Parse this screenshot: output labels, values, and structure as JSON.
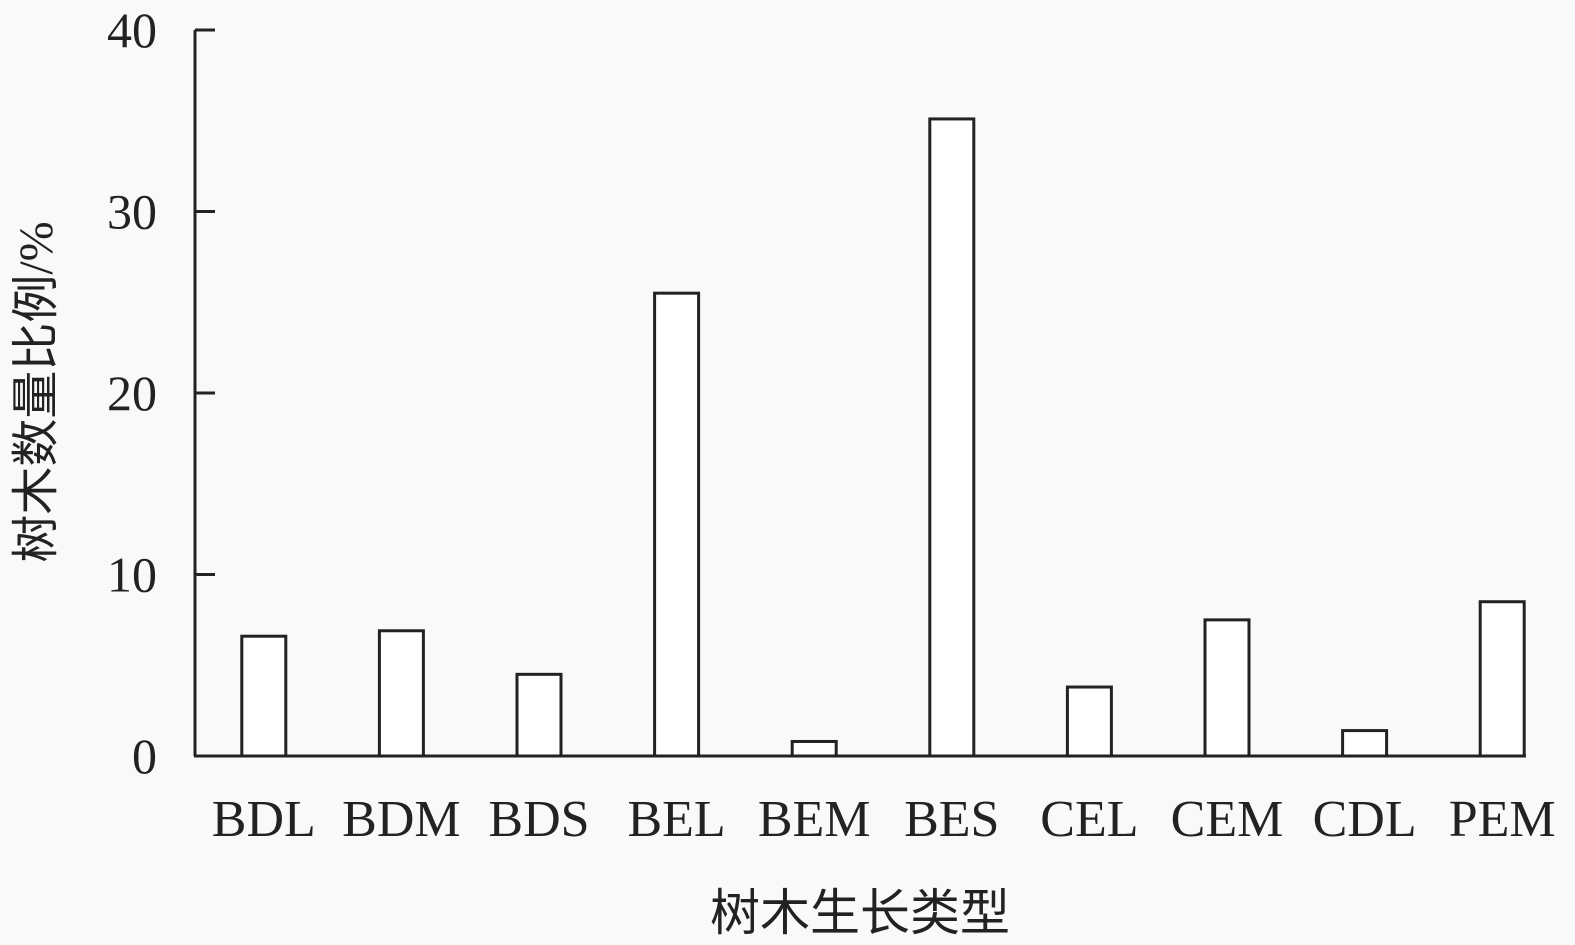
{
  "chart_data": {
    "type": "bar",
    "title": "",
    "xlabel": "树木生长类型",
    "ylabel": "树木数量比例/%",
    "categories": [
      "BDL",
      "BDM",
      "BDS",
      "BEL",
      "BEM",
      "BES",
      "CEL",
      "CEM",
      "CDL",
      "PEM"
    ],
    "values": [
      6.6,
      6.9,
      4.5,
      25.5,
      0.8,
      35.1,
      3.8,
      7.5,
      1.4,
      8.5
    ],
    "ylim": [
      0,
      40
    ],
    "yticks": [
      0,
      10,
      20,
      30,
      40
    ],
    "grid": false,
    "legend": "none",
    "bar_fill": "#ffffff",
    "bar_stroke": "#222222"
  }
}
